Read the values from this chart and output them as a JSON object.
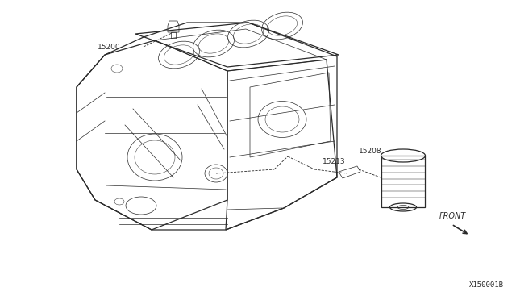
{
  "background_color": "#ffffff",
  "figure_width": 6.4,
  "figure_height": 3.72,
  "dpi": 100,
  "line_color": "#2a2a2a",
  "text_color": "#2a2a2a",
  "label_15200": "15200",
  "label_15213": "15213",
  "label_15208": "15208",
  "label_front": "FRONT",
  "diagram_id": "X150001B",
  "label_fontsize": 6.5,
  "diagram_id_fontsize": 6.5,
  "lw_main": 0.9,
  "lw_thin": 0.5,
  "lw_detail": 0.35
}
